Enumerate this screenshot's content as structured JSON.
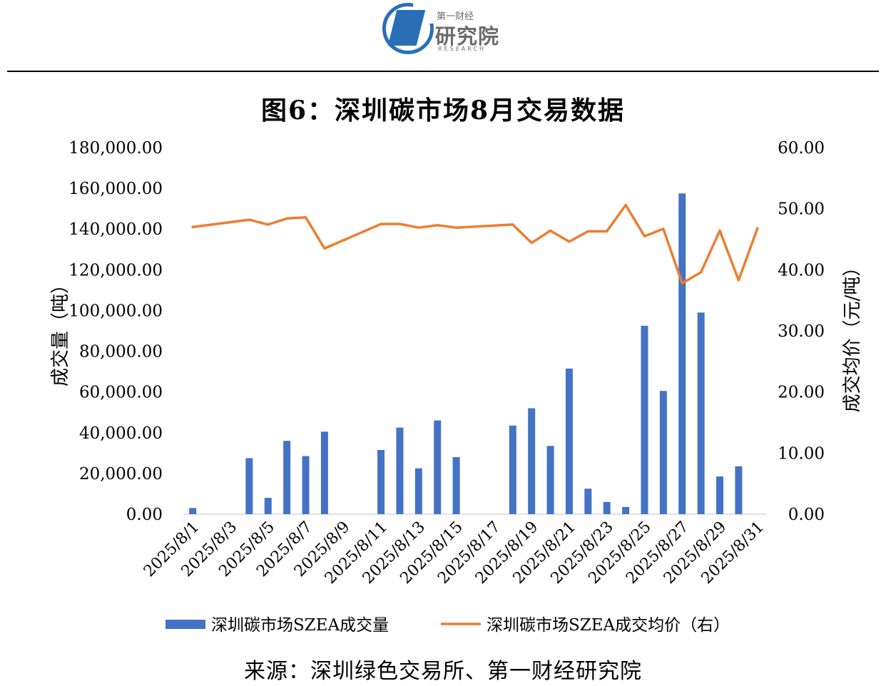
{
  "logo": {
    "small_text": "第一财经",
    "main_text": "研究院",
    "sub_text": "RESEARCH"
  },
  "title": "图6：深圳碳市场8月交易数据",
  "source": "来源：深圳绿色交易所、第一财经研究院",
  "colors": {
    "bar": "#4472c4",
    "line": "#ed7d31"
  },
  "chart_data": {
    "type": "bar",
    "title": "图6：深圳碳市场8月交易数据",
    "ylabel": "成交量（吨）",
    "y2label": "成交均价（元/吨）",
    "ylim": [
      0,
      180000
    ],
    "y2lim": [
      0,
      60
    ],
    "yticks": [
      "0.00",
      "20,000.00",
      "40,000.00",
      "60,000.00",
      "80,000.00",
      "100,000.00",
      "120,000.00",
      "140,000.00",
      "160,000.00",
      "180,000.00"
    ],
    "y2ticks": [
      "0.00",
      "10.00",
      "20.00",
      "30.00",
      "40.00",
      "50.00",
      "60.00"
    ],
    "categories": [
      "2025/8/1",
      "2025/8/2",
      "2025/8/3",
      "2025/8/4",
      "2025/8/5",
      "2025/8/6",
      "2025/8/7",
      "2025/8/8",
      "2025/8/9",
      "2025/8/10",
      "2025/8/11",
      "2025/8/12",
      "2025/8/13",
      "2025/8/14",
      "2025/8/15",
      "2025/8/16",
      "2025/8/17",
      "2025/8/18",
      "2025/8/19",
      "2025/8/20",
      "2025/8/21",
      "2025/8/22",
      "2025/8/23",
      "2025/8/24",
      "2025/8/25",
      "2025/8/26",
      "2025/8/27",
      "2025/8/28",
      "2025/8/29",
      "2025/8/30",
      "2025/8/31"
    ],
    "xticks": [
      "2025/8/1",
      "2025/8/3",
      "2025/8/5",
      "2025/8/7",
      "2025/8/9",
      "2025/8/11",
      "2025/8/13",
      "2025/8/15",
      "2025/8/17",
      "2025/8/19",
      "2025/8/21",
      "2025/8/23",
      "2025/8/25",
      "2025/8/27",
      "2025/8/29",
      "2025/8/31"
    ],
    "series": [
      {
        "name": "深圳碳市场SZEA成交量",
        "type": "bar",
        "axis": "left",
        "values": [
          3000,
          null,
          null,
          27500,
          8000,
          36000,
          28500,
          40500,
          null,
          null,
          31500,
          42500,
          22500,
          46000,
          28000,
          null,
          null,
          43500,
          52000,
          33500,
          71500,
          12500,
          6000,
          3500,
          92500,
          60500,
          157500,
          99000,
          18500,
          23500,
          null
        ]
      },
      {
        "name": "深圳碳市场SZEA成交均价（右）",
        "type": "line",
        "axis": "right",
        "values": [
          47.0,
          null,
          null,
          48.2,
          47.4,
          48.4,
          48.6,
          43.5,
          null,
          null,
          47.5,
          47.5,
          46.9,
          47.3,
          46.9,
          null,
          null,
          47.4,
          44.4,
          46.4,
          44.6,
          46.3,
          46.3,
          50.6,
          45.5,
          46.7,
          37.8,
          39.6,
          46.4,
          38.3,
          46.8
        ]
      }
    ],
    "legend": "bottom"
  }
}
